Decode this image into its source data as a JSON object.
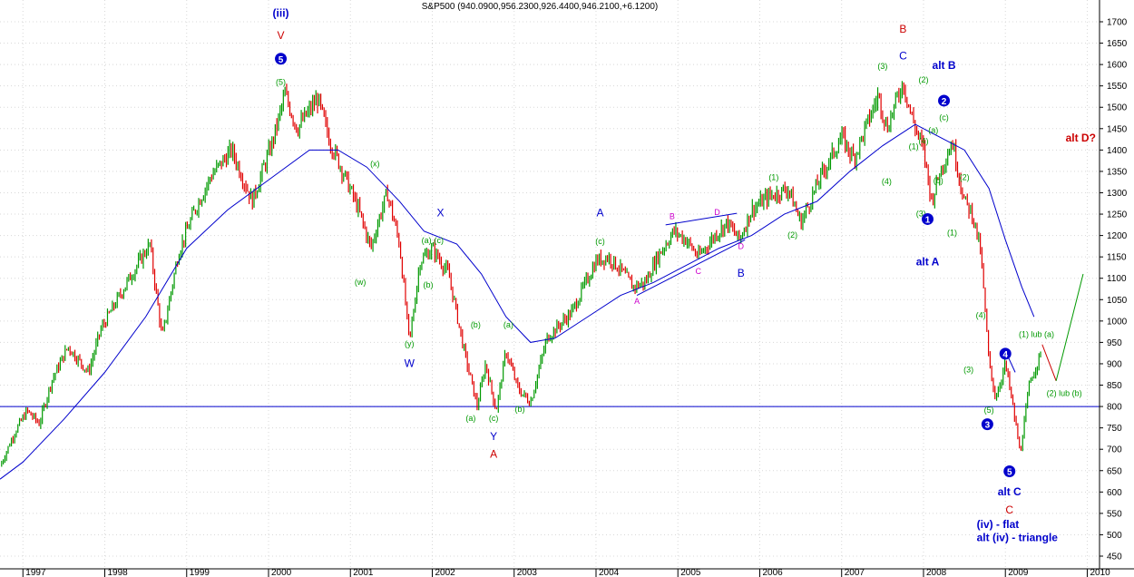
{
  "chart_data": {
    "type": "ohlc",
    "title": "S&P500 (940.0900,956.2300,926.4400,946.2100,+6.1200)",
    "ylim": [
      450,
      1750
    ],
    "xlim": [
      1996.72,
      2010.15
    ],
    "y_ticks": [
      1700,
      1650,
      1600,
      1550,
      1500,
      1450,
      1400,
      1350,
      1300,
      1250,
      1200,
      1150,
      1100,
      1050,
      1000,
      950,
      900,
      850,
      800,
      750,
      700,
      650,
      600,
      550,
      500,
      450
    ],
    "x_ticks": [
      {
        "x": 1997,
        "label": "1997"
      },
      {
        "x": 1998,
        "label": "1998"
      },
      {
        "x": 1999,
        "label": "1999"
      },
      {
        "x": 2000,
        "label": "2000"
      },
      {
        "x": 2001,
        "label": "2001"
      },
      {
        "x": 2002,
        "label": "2002"
      },
      {
        "x": 2003,
        "label": "2003"
      },
      {
        "x": 2004,
        "label": "2004"
      },
      {
        "x": 2005,
        "label": "2005"
      },
      {
        "x": 2006,
        "label": "2006"
      },
      {
        "x": 2007,
        "label": "2007"
      },
      {
        "x": 2008,
        "label": "2008"
      },
      {
        "x": 2009,
        "label": "2009"
      },
      {
        "x": 2010,
        "label": "2010"
      }
    ],
    "grid": true,
    "horizontal_line": 800,
    "price_path": [
      [
        1996.72,
        660
      ],
      [
        1996.9,
        740
      ],
      [
        1997.05,
        790
      ],
      [
        1997.2,
        760
      ],
      [
        1997.35,
        860
      ],
      [
        1997.55,
        940
      ],
      [
        1997.8,
        880
      ],
      [
        1997.95,
        980
      ],
      [
        1998.3,
        1100
      ],
      [
        1998.55,
        1180
      ],
      [
        1998.7,
        960
      ],
      [
        1998.9,
        1160
      ],
      [
        1999.1,
        1260
      ],
      [
        1999.3,
        1340
      ],
      [
        1999.55,
        1400
      ],
      [
        1999.8,
        1280
      ],
      [
        2000.05,
        1420
      ],
      [
        2000.2,
        1530
      ],
      [
        2000.35,
        1450
      ],
      [
        2000.6,
        1520
      ],
      [
        2000.75,
        1420
      ],
      [
        2000.95,
        1330
      ],
      [
        2001.1,
        1260
      ],
      [
        2001.25,
        1170
      ],
      [
        2001.35,
        1240
      ],
      [
        2001.45,
        1300
      ],
      [
        2001.6,
        1180
      ],
      [
        2001.72,
        950
      ],
      [
        2001.85,
        1140
      ],
      [
        2002.0,
        1170
      ],
      [
        2002.2,
        1110
      ],
      [
        2002.4,
        920
      ],
      [
        2002.55,
        800
      ],
      [
        2002.65,
        900
      ],
      [
        2002.78,
        790
      ],
      [
        2002.9,
        930
      ],
      [
        2003.05,
        840
      ],
      [
        2003.2,
        810
      ],
      [
        2003.4,
        960
      ],
      [
        2003.7,
        1020
      ],
      [
        2004.0,
        1140
      ],
      [
        2004.15,
        1150
      ],
      [
        2004.3,
        1120
      ],
      [
        2004.45,
        1080
      ],
      [
        2004.6,
        1090
      ],
      [
        2004.75,
        1150
      ],
      [
        2004.95,
        1210
      ],
      [
        2005.1,
        1190
      ],
      [
        2005.25,
        1150
      ],
      [
        2005.45,
        1200
      ],
      [
        2005.6,
        1230
      ],
      [
        2005.75,
        1190
      ],
      [
        2005.9,
        1260
      ],
      [
        2006.1,
        1290
      ],
      [
        2006.35,
        1310
      ],
      [
        2006.5,
        1230
      ],
      [
        2006.75,
        1340
      ],
      [
        2007.0,
        1430
      ],
      [
        2007.15,
        1380
      ],
      [
        2007.45,
        1530
      ],
      [
        2007.55,
        1450
      ],
      [
        2007.75,
        1560
      ],
      [
        2007.85,
        1480
      ],
      [
        2008.0,
        1400
      ],
      [
        2008.1,
        1280
      ],
      [
        2008.2,
        1350
      ],
      [
        2008.35,
        1420
      ],
      [
        2008.5,
        1280
      ],
      [
        2008.6,
        1250
      ],
      [
        2008.7,
        1160
      ],
      [
        2008.8,
        900
      ],
      [
        2008.88,
        820
      ],
      [
        2009.0,
        900
      ],
      [
        2009.1,
        790
      ],
      [
        2009.18,
        690
      ],
      [
        2009.3,
        860
      ],
      [
        2009.45,
        930
      ]
    ],
    "ma_path": [
      [
        1996.72,
        630
      ],
      [
        1997.0,
        670
      ],
      [
        1997.5,
        770
      ],
      [
        1998.0,
        880
      ],
      [
        1998.5,
        1010
      ],
      [
        1999.0,
        1170
      ],
      [
        1999.5,
        1260
      ],
      [
        2000.0,
        1330
      ],
      [
        2000.5,
        1400
      ],
      [
        2000.85,
        1400
      ],
      [
        2001.2,
        1360
      ],
      [
        2001.6,
        1280
      ],
      [
        2001.9,
        1210
      ],
      [
        2002.3,
        1180
      ],
      [
        2002.6,
        1110
      ],
      [
        2002.9,
        1010
      ],
      [
        2003.2,
        950
      ],
      [
        2003.5,
        960
      ],
      [
        2003.9,
        1010
      ],
      [
        2004.3,
        1060
      ],
      [
        2004.7,
        1090
      ],
      [
        2005.1,
        1130
      ],
      [
        2005.5,
        1170
      ],
      [
        2005.9,
        1200
      ],
      [
        2006.3,
        1250
      ],
      [
        2006.7,
        1280
      ],
      [
        2007.1,
        1350
      ],
      [
        2007.5,
        1410
      ],
      [
        2007.9,
        1460
      ],
      [
        2008.2,
        1430
      ],
      [
        2008.5,
        1400
      ],
      [
        2008.8,
        1310
      ],
      [
        2009.0,
        1190
      ],
      [
        2009.2,
        1080
      ],
      [
        2009.35,
        1010
      ]
    ],
    "trendlines": [
      {
        "name": "triangle-upper",
        "color": "#0000cc",
        "points": [
          [
            2004.85,
            1225
          ],
          [
            2005.72,
            1252
          ]
        ]
      },
      {
        "name": "triangle-lower",
        "color": "#0000cc",
        "points": [
          [
            2004.5,
            1060
          ],
          [
            2005.82,
            1190
          ]
        ]
      },
      {
        "name": "projection-down",
        "color": "#cc0000",
        "points": [
          [
            2009.45,
            945
          ],
          [
            2009.62,
            860
          ]
        ]
      },
      {
        "name": "projection-up",
        "color": "#009900",
        "points": [
          [
            2009.62,
            860
          ],
          [
            2009.95,
            1110
          ]
        ]
      },
      {
        "name": "wave-4-line",
        "color": "#0000cc",
        "points": [
          [
            2009.0,
            930
          ],
          [
            2009.12,
            880
          ]
        ]
      }
    ],
    "annotations": [
      {
        "text": "(iii)",
        "x": 2000.15,
        "y": 1712,
        "color": "#0000cc",
        "size": 12,
        "bold": true
      },
      {
        "text": "V",
        "x": 2000.15,
        "y": 1660,
        "color": "#cc0000",
        "size": 12,
        "bold": false
      },
      {
        "text": "5",
        "x": 2000.15,
        "y": 1605,
        "color": "#0000cc",
        "size": 12,
        "circle": true
      },
      {
        "text": "(5)",
        "x": 2000.15,
        "y": 1552,
        "color": "#009900",
        "size": 9
      },
      {
        "text": "(x)",
        "x": 2001.3,
        "y": 1362,
        "color": "#009900",
        "size": 9
      },
      {
        "text": "(w)",
        "x": 2001.12,
        "y": 1085,
        "color": "#009900",
        "size": 9
      },
      {
        "text": "X",
        "x": 2002.1,
        "y": 1245,
        "color": "#0000cc",
        "size": 12
      },
      {
        "text": "(a)",
        "x": 2001.93,
        "y": 1182,
        "color": "#009900",
        "size": 9
      },
      {
        "text": "(c)",
        "x": 2002.08,
        "y": 1182,
        "color": "#009900",
        "size": 9
      },
      {
        "text": "(b)",
        "x": 2001.95,
        "y": 1078,
        "color": "#009900",
        "size": 9
      },
      {
        "text": "(y)",
        "x": 2001.72,
        "y": 940,
        "color": "#009900",
        "size": 9
      },
      {
        "text": "W",
        "x": 2001.72,
        "y": 892,
        "color": "#0000cc",
        "size": 12
      },
      {
        "text": "(b)",
        "x": 2002.53,
        "y": 985,
        "color": "#009900",
        "size": 9
      },
      {
        "text": "(a)",
        "x": 2002.93,
        "y": 985,
        "color": "#009900",
        "size": 9
      },
      {
        "text": "(a)",
        "x": 2002.47,
        "y": 766,
        "color": "#009900",
        "size": 9
      },
      {
        "text": "(c)",
        "x": 2002.75,
        "y": 766,
        "color": "#009900",
        "size": 9
      },
      {
        "text": "(b)",
        "x": 2003.07,
        "y": 787,
        "color": "#009900",
        "size": 9
      },
      {
        "text": "Y",
        "x": 2002.75,
        "y": 722,
        "color": "#0000cc",
        "size": 12
      },
      {
        "text": "A",
        "x": 2002.75,
        "y": 680,
        "color": "#cc0000",
        "size": 12
      },
      {
        "text": "A",
        "x": 2004.05,
        "y": 1245,
        "color": "#0000cc",
        "size": 12
      },
      {
        "text": "(c)",
        "x": 2004.05,
        "y": 1180,
        "color": "#009900",
        "size": 9
      },
      {
        "text": "B",
        "x": 2004.93,
        "y": 1238,
        "color": "#cc00cc",
        "size": 9
      },
      {
        "text": "D",
        "x": 2005.48,
        "y": 1248,
        "color": "#cc00cc",
        "size": 9
      },
      {
        "text": "A",
        "x": 2004.5,
        "y": 1040,
        "color": "#cc00cc",
        "size": 9
      },
      {
        "text": "C",
        "x": 2005.25,
        "y": 1110,
        "color": "#cc00cc",
        "size": 9
      },
      {
        "text": "D",
        "x": 2005.77,
        "y": 1168,
        "color": "#cc00cc",
        "size": 9
      },
      {
        "text": "B",
        "x": 2005.77,
        "y": 1104,
        "color": "#0000cc",
        "size": 12
      },
      {
        "text": "(1)",
        "x": 2006.17,
        "y": 1330,
        "color": "#009900",
        "size": 9
      },
      {
        "text": "(2)",
        "x": 2006.4,
        "y": 1195,
        "color": "#009900",
        "size": 9
      },
      {
        "text": "(3)",
        "x": 2007.5,
        "y": 1590,
        "color": "#009900",
        "size": 9
      },
      {
        "text": "(4)",
        "x": 2007.55,
        "y": 1320,
        "color": "#009900",
        "size": 9
      },
      {
        "text": "B",
        "x": 2007.75,
        "y": 1675,
        "color": "#cc0000",
        "size": 12
      },
      {
        "text": "C",
        "x": 2007.75,
        "y": 1612,
        "color": "#0000cc",
        "size": 12
      },
      {
        "text": "(1)",
        "x": 2007.88,
        "y": 1402,
        "color": "#009900",
        "size": 9
      },
      {
        "text": "(2)",
        "x": 2008.0,
        "y": 1558,
        "color": "#009900",
        "size": 9
      },
      {
        "text": "(3)",
        "x": 2007.97,
        "y": 1245,
        "color": "#009900",
        "size": 9
      },
      {
        "text": "alt B",
        "x": 2008.25,
        "y": 1590,
        "color": "#0000cc",
        "size": 12,
        "bold": true
      },
      {
        "text": "2",
        "x": 2008.25,
        "y": 1507,
        "color": "#0000cc",
        "size": 12,
        "circle": true
      },
      {
        "text": "(c)",
        "x": 2008.25,
        "y": 1470,
        "color": "#009900",
        "size": 9
      },
      {
        "text": "(a)",
        "x": 2008.12,
        "y": 1440,
        "color": "#009900",
        "size": 9
      },
      {
        "text": "(4)",
        "x": 2008.0,
        "y": 1415,
        "color": "#009900",
        "size": 9
      },
      {
        "text": "(b)",
        "x": 2008.18,
        "y": 1322,
        "color": "#009900",
        "size": 9
      },
      {
        "text": "(2)",
        "x": 2008.5,
        "y": 1330,
        "color": "#009900",
        "size": 9
      },
      {
        "text": "(1)",
        "x": 2008.35,
        "y": 1200,
        "color": "#009900",
        "size": 9
      },
      {
        "text": "1",
        "x": 2008.05,
        "y": 1230,
        "color": "#0000cc",
        "size": 12,
        "circle": true
      },
      {
        "text": "alt A",
        "x": 2008.05,
        "y": 1130,
        "color": "#0000cc",
        "size": 12,
        "bold": true
      },
      {
        "text": "(4)",
        "x": 2008.7,
        "y": 1007,
        "color": "#009900",
        "size": 9
      },
      {
        "text": "(3)",
        "x": 2008.55,
        "y": 880,
        "color": "#009900",
        "size": 9
      },
      {
        "text": "(5)",
        "x": 2008.8,
        "y": 785,
        "color": "#009900",
        "size": 9
      },
      {
        "text": "3",
        "x": 2008.78,
        "y": 750,
        "color": "#0000cc",
        "size": 12,
        "circle": true
      },
      {
        "text": "4",
        "x": 2009.0,
        "y": 915,
        "color": "#0000cc",
        "size": 12,
        "circle": true
      },
      {
        "text": "(1) lub (a)",
        "x": 2009.38,
        "y": 963,
        "color": "#009900",
        "size": 9
      },
      {
        "text": "(2) lub (b)",
        "x": 2009.72,
        "y": 825,
        "color": "#009900",
        "size": 9
      },
      {
        "text": "5",
        "x": 2009.05,
        "y": 640,
        "color": "#0000cc",
        "size": 12,
        "circle": true
      },
      {
        "text": "alt C",
        "x": 2009.05,
        "y": 592,
        "color": "#0000cc",
        "size": 12,
        "bold": true
      },
      {
        "text": "C",
        "x": 2009.05,
        "y": 550,
        "color": "#cc0000",
        "size": 12
      },
      {
        "text": "(iv) - flat",
        "x": 2008.65,
        "y": 516,
        "color": "#0000cc",
        "size": 12,
        "bold": true,
        "anchor": "start"
      },
      {
        "text": "alt (iv) - triangle",
        "x": 2008.65,
        "y": 485,
        "color": "#0000cc",
        "size": 12,
        "bold": true,
        "anchor": "start"
      },
      {
        "text": "alt D?",
        "x": 2009.92,
        "y": 1420,
        "color": "#cc0000",
        "size": 12,
        "bold": true
      }
    ],
    "colors": {
      "up": "#009900",
      "down": "#e00000",
      "ma": "#0000cc",
      "hline": "#0000cc",
      "grid": "#d8d8d8"
    }
  }
}
